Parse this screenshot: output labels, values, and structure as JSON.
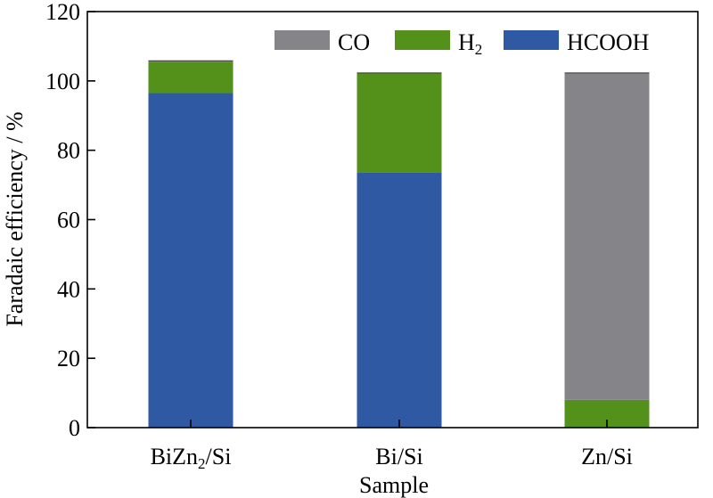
{
  "chart_data": {
    "type": "bar",
    "stacked": true,
    "title": "",
    "xlabel": "Sample",
    "ylabel": "Faradaic efficiency / %",
    "ylim": [
      0,
      120
    ],
    "yticks": [
      "0",
      "20",
      "40",
      "60",
      "80",
      "100",
      "120"
    ],
    "grid": false,
    "legend_position": "top-right",
    "categories": [
      {
        "base": "BiZn",
        "sub": "2",
        "tail": "/Si"
      },
      {
        "base": "Bi/Si",
        "sub": "",
        "tail": ""
      },
      {
        "base": "Zn/Si",
        "sub": "",
        "tail": ""
      }
    ],
    "series": [
      {
        "name": "HCOOH",
        "name_base": "HCOOH",
        "name_sub": "",
        "color": "#2f5aa3",
        "values": [
          96.5,
          73.5,
          0
        ]
      },
      {
        "name": "H2",
        "name_base": "H",
        "name_sub": "2",
        "color": "#54911b",
        "values": [
          9.0,
          28.8,
          8.0
        ]
      },
      {
        "name": "CO",
        "name_base": "CO",
        "name_sub": "",
        "color": "#858488",
        "values": [
          0.3,
          0,
          94.3
        ]
      }
    ],
    "legend_order": [
      "CO",
      "H2",
      "HCOOH"
    ]
  }
}
